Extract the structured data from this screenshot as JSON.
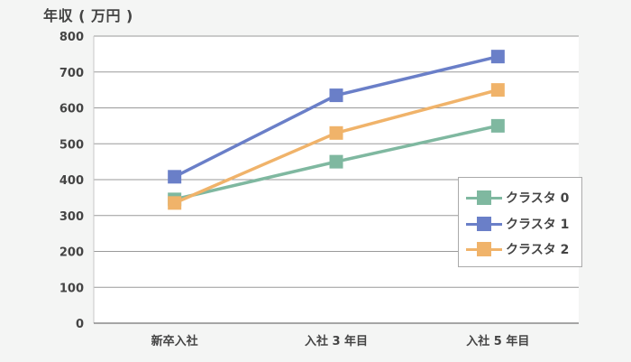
{
  "chart_data": {
    "type": "line",
    "title": "",
    "ylabel": "年収 ( 万円 )",
    "xlabel": "",
    "categories": [
      "新卒入社",
      "入社 3 年目",
      "入社 5 年目"
    ],
    "ylim": [
      0,
      800
    ],
    "yticks": [
      0,
      100,
      200,
      300,
      400,
      500,
      600,
      700,
      800
    ],
    "grid": true,
    "legend_position": "right-inside",
    "series": [
      {
        "name": "クラスタ 0",
        "color": "#7fb8a0",
        "values": [
          345,
          450,
          550
        ]
      },
      {
        "name": "クラスタ 1",
        "color": "#6a7fc8",
        "values": [
          408,
          635,
          743
        ]
      },
      {
        "name": "クラスタ 2",
        "color": "#f0b36a",
        "values": [
          335,
          530,
          650
        ]
      }
    ]
  }
}
